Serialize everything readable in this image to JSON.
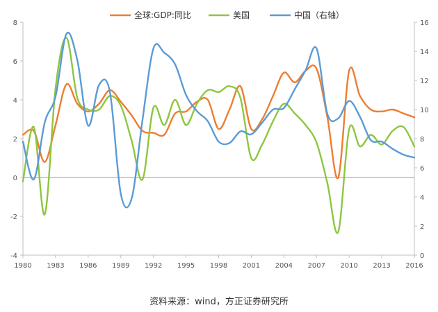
{
  "chart_data": {
    "type": "line",
    "title": "",
    "xlabel": "",
    "ylabel": "",
    "x_ticks": [
      "1980",
      "1983",
      "1986",
      "1989",
      "1992",
      "1995",
      "1998",
      "2001",
      "2004",
      "2007",
      "2010",
      "2013",
      "2016"
    ],
    "y_left_ticks": [
      "8",
      "6",
      "4",
      "2",
      "0",
      "-2",
      "-4"
    ],
    "y_right_ticks": [
      "16",
      "14",
      "12",
      "10",
      "8",
      "6",
      "4",
      "2",
      "0"
    ],
    "ylim_left": [
      -4,
      8
    ],
    "ylim_right": [
      0,
      16
    ],
    "xlim": [
      1980,
      2016
    ],
    "grid": false,
    "legend_position": "top",
    "series": [
      {
        "name": "全球:GDP:同比",
        "axis": "left",
        "color": "#ED7D31",
        "points": [
          [
            1980,
            2.2
          ],
          [
            1981,
            2.4
          ],
          [
            1982,
            0.8
          ],
          [
            1983,
            2.7
          ],
          [
            1984,
            4.8
          ],
          [
            1985,
            3.8
          ],
          [
            1986,
            3.4
          ],
          [
            1987,
            3.8
          ],
          [
            1988,
            4.5
          ],
          [
            1989,
            3.9
          ],
          [
            1990,
            3.2
          ],
          [
            1991,
            2.4
          ],
          [
            1992,
            2.3
          ],
          [
            1993,
            2.2
          ],
          [
            1994,
            3.3
          ],
          [
            1995,
            3.4
          ],
          [
            1996,
            3.9
          ],
          [
            1997,
            4.0
          ],
          [
            1998,
            2.5
          ],
          [
            1999,
            3.5
          ],
          [
            2000,
            4.7
          ],
          [
            2001,
            2.5
          ],
          [
            2002,
            3.0
          ],
          [
            2003,
            4.2
          ],
          [
            2004,
            5.4
          ],
          [
            2005,
            4.9
          ],
          [
            2006,
            5.5
          ],
          [
            2007,
            5.6
          ],
          [
            2008,
            3.1
          ],
          [
            2009,
            0.0
          ],
          [
            2010,
            5.5
          ],
          [
            2011,
            4.2
          ],
          [
            2012,
            3.5
          ],
          [
            2013,
            3.4
          ],
          [
            2014,
            3.5
          ],
          [
            2015,
            3.3
          ],
          [
            2016,
            3.1
          ]
        ]
      },
      {
        "name": "美国",
        "axis": "left",
        "color": "#8DC63F",
        "points": [
          [
            1980,
            -0.2
          ],
          [
            1981,
            2.6
          ],
          [
            1982,
            -1.9
          ],
          [
            1983,
            4.6
          ],
          [
            1984,
            7.2
          ],
          [
            1985,
            4.1
          ],
          [
            1986,
            3.5
          ],
          [
            1987,
            3.5
          ],
          [
            1988,
            4.2
          ],
          [
            1989,
            3.7
          ],
          [
            1990,
            1.9
          ],
          [
            1991,
            -0.1
          ],
          [
            1992,
            3.6
          ],
          [
            1993,
            2.7
          ],
          [
            1994,
            4.0
          ],
          [
            1995,
            2.7
          ],
          [
            1996,
            3.8
          ],
          [
            1997,
            4.5
          ],
          [
            1998,
            4.4
          ],
          [
            1999,
            4.7
          ],
          [
            2000,
            4.1
          ],
          [
            2001,
            1.0
          ],
          [
            2002,
            1.7
          ],
          [
            2003,
            2.9
          ],
          [
            2004,
            3.8
          ],
          [
            2005,
            3.3
          ],
          [
            2006,
            2.7
          ],
          [
            2007,
            1.8
          ],
          [
            2008,
            -0.3
          ],
          [
            2009,
            -2.8
          ],
          [
            2010,
            2.5
          ],
          [
            2011,
            1.6
          ],
          [
            2012,
            2.2
          ],
          [
            2013,
            1.7
          ],
          [
            2014,
            2.4
          ],
          [
            2015,
            2.6
          ],
          [
            2016,
            1.6
          ]
        ]
      },
      {
        "name": "中国（右轴）",
        "axis": "right",
        "color": "#5B9BD5",
        "points": [
          [
            1980,
            7.8
          ],
          [
            1981,
            5.2
          ],
          [
            1982,
            9.1
          ],
          [
            1983,
            10.9
          ],
          [
            1984,
            15.2
          ],
          [
            1985,
            13.4
          ],
          [
            1986,
            8.9
          ],
          [
            1987,
            11.7
          ],
          [
            1988,
            11.2
          ],
          [
            1989,
            4.2
          ],
          [
            1990,
            3.9
          ],
          [
            1991,
            9.3
          ],
          [
            1992,
            14.2
          ],
          [
            1993,
            13.9
          ],
          [
            1994,
            13.1
          ],
          [
            1995,
            11.0
          ],
          [
            1996,
            9.9
          ],
          [
            1997,
            9.2
          ],
          [
            1998,
            7.8
          ],
          [
            1999,
            7.7
          ],
          [
            2000,
            8.5
          ],
          [
            2001,
            8.3
          ],
          [
            2002,
            9.1
          ],
          [
            2003,
            10.0
          ],
          [
            2004,
            10.1
          ],
          [
            2005,
            11.4
          ],
          [
            2006,
            12.7
          ],
          [
            2007,
            14.2
          ],
          [
            2008,
            9.7
          ],
          [
            2009,
            9.4
          ],
          [
            2010,
            10.6
          ],
          [
            2011,
            9.5
          ],
          [
            2012,
            7.9
          ],
          [
            2013,
            7.8
          ],
          [
            2014,
            7.3
          ],
          [
            2015,
            6.9
          ],
          [
            2016,
            6.7
          ]
        ]
      }
    ]
  },
  "caption": "资料来源：wind，方正证券研究所"
}
